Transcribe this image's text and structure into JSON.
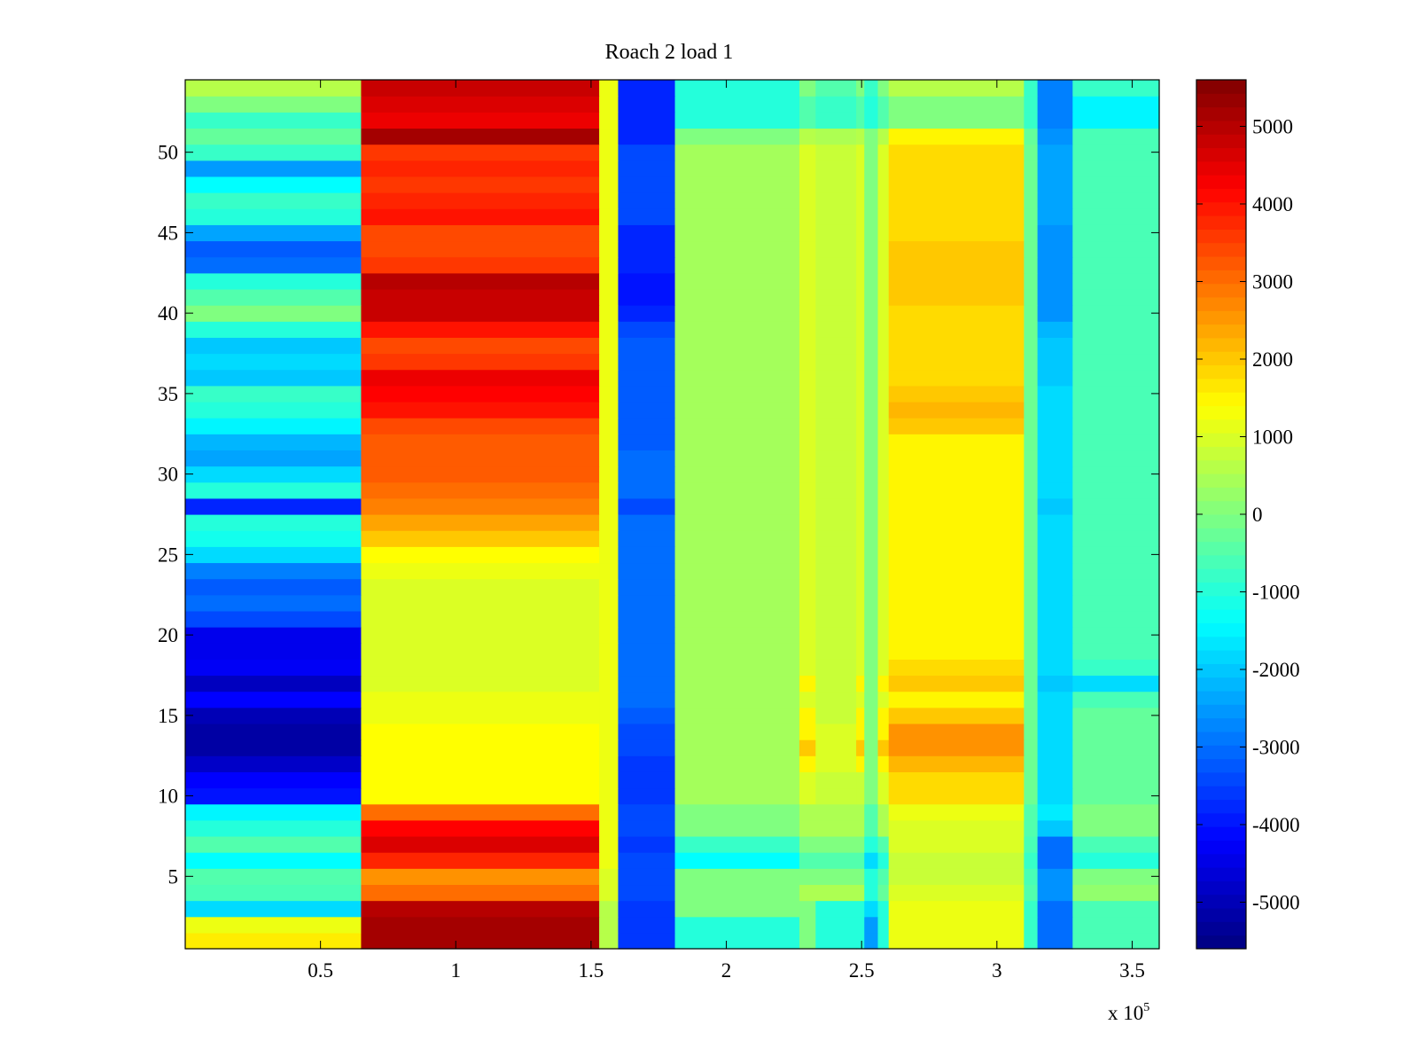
{
  "chart_data": {
    "type": "heatmap",
    "title": "Roach 2 load 1",
    "xlabel": "",
    "ylabel": "",
    "x_multiplier": "x 10",
    "x_multiplier_exponent": "5",
    "xlim": [
      0,
      3.6
    ],
    "ylim": [
      0.5,
      54.5
    ],
    "x_ticks": [
      0.5,
      1,
      1.5,
      2,
      2.5,
      3,
      3.5
    ],
    "x_tick_labels": [
      "0.5",
      "1",
      "1.5",
      "2",
      "2.5",
      "3",
      "3.5"
    ],
    "y_ticks": [
      5,
      10,
      15,
      20,
      25,
      30,
      35,
      40,
      45,
      50
    ],
    "y_tick_labels": [
      "5",
      "10",
      "15",
      "20",
      "25",
      "30",
      "35",
      "40",
      "45",
      "50"
    ],
    "colormap": "jet",
    "clim": [
      -5600,
      5600
    ],
    "colorbar_ticks": [
      5000,
      4000,
      3000,
      2000,
      1000,
      0,
      -1000,
      -2000,
      -3000,
      -4000,
      -5000
    ],
    "colorbar_tick_labels": [
      "5000",
      "4000",
      "3000",
      "2000",
      "1000",
      "0",
      "-1000",
      "-2000",
      "-3000",
      "-4000",
      "-5000"
    ],
    "x_segments": [
      {
        "x0": 0.0,
        "x1": 0.65,
        "name": "left"
      },
      {
        "x0": 0.65,
        "x1": 1.53,
        "name": "hot"
      },
      {
        "x0": 1.53,
        "x1": 1.6,
        "name": "dip"
      },
      {
        "x0": 1.6,
        "x1": 1.81,
        "name": "cold"
      },
      {
        "x0": 1.81,
        "x1": 2.27,
        "name": "mid"
      },
      {
        "x0": 2.27,
        "x1": 2.33,
        "name": "stripe1"
      },
      {
        "x0": 2.33,
        "x1": 2.48,
        "name": "mid2"
      },
      {
        "x0": 2.48,
        "x1": 2.51,
        "name": "stripe2"
      },
      {
        "x0": 2.51,
        "x1": 2.56,
        "name": "cold2"
      },
      {
        "x0": 2.56,
        "x1": 2.6,
        "name": "stripe3"
      },
      {
        "x0": 2.6,
        "x1": 3.1,
        "name": "warm"
      },
      {
        "x0": 3.1,
        "x1": 3.15,
        "name": "cool"
      },
      {
        "x0": 3.15,
        "x1": 3.28,
        "name": "coldband"
      },
      {
        "x0": 3.28,
        "x1": 3.6,
        "name": "right"
      }
    ],
    "rows": [
      {
        "y": 1,
        "values": [
          1600,
          5200,
          600,
          -3600,
          -1000,
          0,
          -1000,
          -1000,
          -2500,
          -1000,
          1200,
          -800,
          -3000,
          -600
        ]
      },
      {
        "y": 2,
        "values": [
          1200,
          5200,
          600,
          -3600,
          -1000,
          0,
          -1000,
          -1000,
          -2500,
          -1000,
          1200,
          -800,
          -3000,
          -600
        ]
      },
      {
        "y": 3,
        "values": [
          -1800,
          5000,
          600,
          -3600,
          0,
          0,
          -1000,
          -1000,
          -1800,
          -1000,
          1200,
          -800,
          -3000,
          -600
        ]
      },
      {
        "y": 4,
        "values": [
          -600,
          3000,
          1000,
          -3400,
          0,
          500,
          500,
          500,
          -1000,
          -300,
          1000,
          -500,
          -2600,
          200
        ]
      },
      {
        "y": 5,
        "values": [
          -500,
          2600,
          1000,
          -3400,
          0,
          0,
          0,
          0,
          -1000,
          -500,
          800,
          -600,
          -2600,
          0
        ]
      },
      {
        "y": 6,
        "values": [
          -1400,
          3800,
          1200,
          -3400,
          -1400,
          -500,
          -500,
          -500,
          -1800,
          -1000,
          800,
          -800,
          -3000,
          -1000
        ]
      },
      {
        "y": 7,
        "values": [
          -500,
          4600,
          1200,
          -3600,
          -800,
          0,
          0,
          0,
          -1000,
          -500,
          1000,
          -600,
          -3000,
          -600
        ]
      },
      {
        "y": 8,
        "values": [
          -1000,
          4200,
          1200,
          -3400,
          0,
          500,
          500,
          500,
          -500,
          500,
          1000,
          -500,
          -2000,
          0
        ]
      },
      {
        "y": 9,
        "values": [
          -1500,
          3000,
          1200,
          -3400,
          0,
          500,
          500,
          500,
          -500,
          500,
          1200,
          -500,
          -1600,
          0
        ]
      },
      {
        "y": 10,
        "values": [
          -4000,
          1400,
          1200,
          -3600,
          400,
          1000,
          800,
          800,
          0,
          1000,
          1800,
          -200,
          -1800,
          -300
        ]
      },
      {
        "y": 11,
        "values": [
          -4200,
          1400,
          1200,
          -3600,
          400,
          1000,
          800,
          800,
          0,
          1000,
          1800,
          -200,
          -1800,
          -300
        ]
      },
      {
        "y": 12,
        "values": [
          -4800,
          1400,
          1200,
          -3600,
          400,
          1500,
          1000,
          1500,
          0,
          1500,
          2200,
          -200,
          -1800,
          -300
        ]
      },
      {
        "y": 13,
        "values": [
          -5200,
          1400,
          1200,
          -3400,
          400,
          2000,
          1000,
          2000,
          0,
          2000,
          2600,
          -200,
          -1800,
          -300
        ]
      },
      {
        "y": 14,
        "values": [
          -5200,
          1400,
          1200,
          -3400,
          400,
          1500,
          1000,
          1500,
          0,
          1500,
          2600,
          -200,
          -1800,
          -300
        ]
      },
      {
        "y": 15,
        "values": [
          -5000,
          1200,
          1200,
          -3200,
          400,
          1500,
          800,
          1500,
          0,
          1500,
          2000,
          -200,
          -1800,
          -300
        ]
      },
      {
        "y": 16,
        "values": [
          -4200,
          1200,
          1200,
          -3000,
          400,
          1000,
          800,
          1000,
          0,
          1000,
          1500,
          -200,
          -1800,
          -600
        ]
      },
      {
        "y": 17,
        "values": [
          -4900,
          1000,
          1200,
          -3000,
          400,
          1500,
          800,
          1500,
          0,
          1500,
          2000,
          -200,
          -2000,
          -1800
        ]
      },
      {
        "y": 18,
        "values": [
          -4300,
          1000,
          1200,
          -3000,
          400,
          1000,
          800,
          1000,
          0,
          1000,
          1800,
          -200,
          -1800,
          -800
        ]
      },
      {
        "y": 19,
        "values": [
          -4400,
          1000,
          1200,
          -3000,
          400,
          1000,
          800,
          1000,
          0,
          1000,
          1500,
          -200,
          -1800,
          -600
        ]
      },
      {
        "y": 20,
        "values": [
          -4400,
          1000,
          1200,
          -3000,
          400,
          1000,
          800,
          1000,
          0,
          1000,
          1500,
          -200,
          -1800,
          -600
        ]
      },
      {
        "y": 21,
        "values": [
          -3400,
          1000,
          1200,
          -3000,
          400,
          1000,
          800,
          1000,
          0,
          1000,
          1500,
          -200,
          -1800,
          -600
        ]
      },
      {
        "y": 22,
        "values": [
          -3000,
          1000,
          1200,
          -3000,
          400,
          1000,
          800,
          1000,
          0,
          1000,
          1500,
          -200,
          -1800,
          -600
        ]
      },
      {
        "y": 23,
        "values": [
          -3200,
          1000,
          1200,
          -3000,
          400,
          1000,
          800,
          1000,
          0,
          1000,
          1500,
          -200,
          -1800,
          -600
        ]
      },
      {
        "y": 24,
        "values": [
          -2800,
          1200,
          1200,
          -3000,
          400,
          1000,
          800,
          1000,
          0,
          1000,
          1500,
          -200,
          -1800,
          -600
        ]
      },
      {
        "y": 25,
        "values": [
          -1800,
          1400,
          1200,
          -3000,
          400,
          1000,
          800,
          1000,
          0,
          1000,
          1500,
          -200,
          -1800,
          -600
        ]
      },
      {
        "y": 26,
        "values": [
          -1200,
          2000,
          1200,
          -3000,
          400,
          1000,
          800,
          1000,
          0,
          1000,
          1500,
          -200,
          -1800,
          -600
        ]
      },
      {
        "y": 27,
        "values": [
          -1000,
          2400,
          1200,
          -3000,
          400,
          1000,
          800,
          1000,
          0,
          1000,
          1500,
          -200,
          -1800,
          -600
        ]
      },
      {
        "y": 28,
        "values": [
          -3800,
          2800,
          1200,
          -3400,
          400,
          1000,
          800,
          1000,
          0,
          1000,
          1500,
          -200,
          -2000,
          -600
        ]
      },
      {
        "y": 29,
        "values": [
          -1000,
          3000,
          1200,
          -3000,
          400,
          1000,
          800,
          1000,
          0,
          1000,
          1500,
          -200,
          -1800,
          -600
        ]
      },
      {
        "y": 30,
        "values": [
          -1800,
          3200,
          1200,
          -3000,
          400,
          1000,
          800,
          1000,
          0,
          1000,
          1500,
          -200,
          -1800,
          -600
        ]
      },
      {
        "y": 31,
        "values": [
          -2400,
          3200,
          1200,
          -3000,
          400,
          1000,
          800,
          1000,
          0,
          1000,
          1500,
          -200,
          -1800,
          -600
        ]
      },
      {
        "y": 32,
        "values": [
          -2200,
          3200,
          1200,
          -3200,
          400,
          1000,
          800,
          1000,
          0,
          1000,
          1500,
          -200,
          -1800,
          -600
        ]
      },
      {
        "y": 33,
        "values": [
          -1500,
          3400,
          1200,
          -3200,
          400,
          1000,
          800,
          1000,
          0,
          1000,
          2000,
          -200,
          -1800,
          -600
        ]
      },
      {
        "y": 34,
        "values": [
          -1000,
          4000,
          1200,
          -3200,
          400,
          1000,
          800,
          1000,
          0,
          1000,
          2200,
          -200,
          -1800,
          -600
        ]
      },
      {
        "y": 35,
        "values": [
          -800,
          4200,
          1200,
          -3200,
          400,
          1000,
          800,
          1000,
          0,
          1000,
          2000,
          -200,
          -1800,
          -600
        ]
      },
      {
        "y": 36,
        "values": [
          -2000,
          4400,
          1200,
          -3200,
          400,
          1000,
          800,
          1000,
          0,
          1000,
          1800,
          -200,
          -2000,
          -600
        ]
      },
      {
        "y": 37,
        "values": [
          -1800,
          3600,
          1200,
          -3200,
          400,
          1000,
          800,
          1000,
          0,
          1000,
          1800,
          -200,
          -2000,
          -600
        ]
      },
      {
        "y": 38,
        "values": [
          -2000,
          3400,
          1200,
          -3200,
          400,
          1000,
          800,
          1000,
          0,
          1000,
          1800,
          -200,
          -2000,
          -600
        ]
      },
      {
        "y": 39,
        "values": [
          -1000,
          4000,
          1200,
          -3400,
          400,
          1000,
          800,
          1000,
          0,
          1000,
          1800,
          -200,
          -2200,
          -600
        ]
      },
      {
        "y": 40,
        "values": [
          0,
          4800,
          1200,
          -3800,
          400,
          1000,
          800,
          1000,
          0,
          1000,
          1800,
          -200,
          -2600,
          -600
        ]
      },
      {
        "y": 41,
        "values": [
          -500,
          4800,
          1200,
          -4000,
          400,
          1000,
          800,
          1000,
          0,
          1000,
          2000,
          -200,
          -2600,
          -600
        ]
      },
      {
        "y": 42,
        "values": [
          -1000,
          5000,
          1200,
          -4000,
          400,
          1000,
          800,
          1000,
          0,
          1000,
          2000,
          -200,
          -2600,
          -600
        ]
      },
      {
        "y": 43,
        "values": [
          -3000,
          3600,
          1200,
          -3800,
          400,
          1000,
          800,
          1000,
          0,
          1000,
          2000,
          -200,
          -2600,
          -600
        ]
      },
      {
        "y": 44,
        "values": [
          -3200,
          3400,
          1200,
          -3800,
          400,
          1000,
          800,
          1000,
          0,
          1000,
          2000,
          -200,
          -2600,
          -600
        ]
      },
      {
        "y": 45,
        "values": [
          -2400,
          3400,
          1200,
          -3800,
          400,
          1000,
          800,
          1000,
          0,
          1000,
          1800,
          -200,
          -2600,
          -600
        ]
      },
      {
        "y": 46,
        "values": [
          -1000,
          4000,
          1200,
          -3400,
          400,
          1000,
          800,
          1000,
          0,
          1000,
          1800,
          -200,
          -2400,
          -600
        ]
      },
      {
        "y": 47,
        "values": [
          -800,
          3800,
          1200,
          -3400,
          400,
          1000,
          800,
          1000,
          0,
          1000,
          1800,
          -200,
          -2400,
          -600
        ]
      },
      {
        "y": 48,
        "values": [
          -1400,
          3600,
          1200,
          -3400,
          400,
          1000,
          800,
          1000,
          0,
          1000,
          1800,
          -200,
          -2400,
          -600
        ]
      },
      {
        "y": 49,
        "values": [
          -2500,
          3800,
          1200,
          -3400,
          400,
          1000,
          800,
          1000,
          0,
          1000,
          1800,
          -200,
          -2400,
          -600
        ]
      },
      {
        "y": 50,
        "values": [
          -800,
          3600,
          1200,
          -3400,
          400,
          1000,
          800,
          1000,
          0,
          1000,
          1800,
          -200,
          -2400,
          -600
        ]
      },
      {
        "y": 51,
        "values": [
          -300,
          5200,
          1200,
          -3800,
          0,
          600,
          500,
          600,
          0,
          600,
          1500,
          -300,
          -2600,
          -600
        ]
      },
      {
        "y": 52,
        "values": [
          -800,
          4400,
          1200,
          -3800,
          -1000,
          -500,
          -800,
          -500,
          -1000,
          -500,
          0,
          -800,
          -2800,
          -1500
        ]
      },
      {
        "y": 53,
        "values": [
          0,
          4600,
          1200,
          -3800,
          -1000,
          -500,
          -800,
          -500,
          -1000,
          -500,
          0,
          -800,
          -2800,
          -1500
        ]
      },
      {
        "y": 54,
        "values": [
          600,
          4800,
          1200,
          -3800,
          -1000,
          0,
          -500,
          0,
          -800,
          0,
          600,
          -800,
          -2800,
          -800
        ]
      }
    ]
  }
}
